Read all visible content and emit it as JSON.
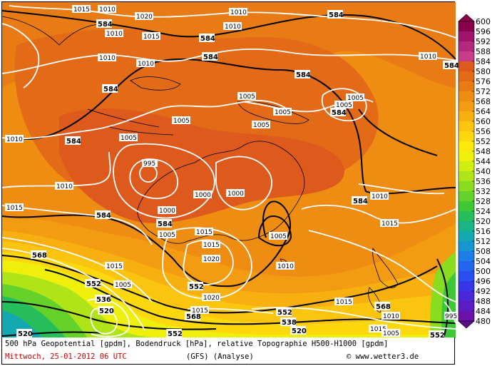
{
  "map": {
    "geopotential_labels": [
      "584",
      "584",
      "584",
      "584",
      "584",
      "584",
      "584",
      "584",
      "584",
      "584",
      "584",
      "584",
      "568",
      "568",
      "552",
      "552",
      "552",
      "552",
      "536",
      "538",
      "520",
      "520",
      "520",
      "568",
      "552"
    ],
    "pressure_labels": [
      "1015",
      "1010",
      "1020",
      "1010",
      "1015",
      "1010",
      "1010",
      "1010",
      "1005",
      "1005",
      "1005",
      "1005",
      "1005",
      "1005",
      "1005",
      "995",
      "1000",
      "1000",
      "1000",
      "1005",
      "1010",
      "1015",
      "1015",
      "1005",
      "1015",
      "1020",
      "1020",
      "1015",
      "1010",
      "1010",
      "1015",
      "1015",
      "1005",
      "1010",
      "1010",
      "1015",
      "1015",
      "1005",
      "1010",
      "1010",
      "995"
    ]
  },
  "colorbar": {
    "levels": [
      "600",
      "596",
      "592",
      "588",
      "584",
      "580",
      "576",
      "572",
      "568",
      "564",
      "560",
      "556",
      "552",
      "548",
      "544",
      "540",
      "536",
      "532",
      "528",
      "524",
      "520",
      "516",
      "512",
      "508",
      "504",
      "500",
      "496",
      "492",
      "488",
      "484",
      "480"
    ],
    "colors": [
      "#8b004a",
      "#a0146e",
      "#b4287e",
      "#c83c8c",
      "#dd5a1c",
      "#e36b18",
      "#e97b14",
      "#ef8c12",
      "#f39c12",
      "#f7b010",
      "#fbc40e",
      "#fdd80c",
      "#fde80c",
      "#eef00c",
      "#d0ee10",
      "#aee418",
      "#8adc20",
      "#64d22a",
      "#3ec836",
      "#26be5a",
      "#1ab486",
      "#14a8b0",
      "#1896d2",
      "#1e7ee8",
      "#2266f0",
      "#2a4ef0",
      "#3436e8",
      "#4a28d8",
      "#5c1cc4",
      "#6c12ac"
    ]
  },
  "caption": {
    "title": "500 hPa Geopotential [gpdm], Bodendruck [hPa], relative Topographie H500-H1000 [gpdm]",
    "datetime": "Mittwoch, 25-01-2012  06 UTC",
    "model": "(GFS)  (Analyse)",
    "credit": "© www.wetter3.de"
  }
}
